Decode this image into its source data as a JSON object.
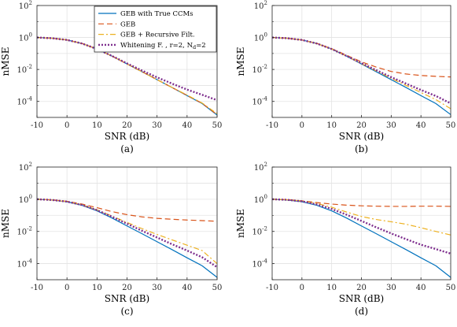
{
  "chart_data": [
    {
      "type": "line",
      "panel_label": "(a)",
      "xlabel": "SNR (dB)",
      "ylabel": "nMSE",
      "xlim": [
        -10,
        50
      ],
      "ylim": [
        1e-05,
        100
      ],
      "yscale": "log",
      "grid": true,
      "legend": "top-right",
      "x": [
        -10,
        -5,
        0,
        5,
        10,
        15,
        20,
        25,
        30,
        35,
        40,
        45,
        50
      ],
      "series": [
        {
          "name": "GEB with True CCMs",
          "color": "#0072bd",
          "style": "solid",
          "values": [
            1.0,
            0.9,
            0.7,
            0.42,
            0.19,
            0.068,
            0.022,
            0.0072,
            0.0023,
            0.00074,
            0.00023,
            7.4e-05,
            1.4e-05
          ]
        },
        {
          "name": "GEB",
          "color": "#d95319",
          "style": "dashed",
          "values": [
            1.0,
            0.9,
            0.7,
            0.42,
            0.19,
            0.068,
            0.022,
            0.0072,
            0.0023,
            0.00074,
            0.00024,
            7.6e-05,
            1.5e-05
          ]
        },
        {
          "name": "GEB + Recursive Filt.",
          "color": "#edb120",
          "style": "dashdot",
          "values": [
            1.0,
            0.9,
            0.7,
            0.42,
            0.19,
            0.068,
            0.022,
            0.0072,
            0.0023,
            0.00075,
            0.00025,
            8e-05,
            1.7e-05
          ]
        },
        {
          "name": "Whitening F. , r=2, N_d=2",
          "color": "#7e2f8e",
          "style": "dotted",
          "values": [
            1.0,
            0.9,
            0.7,
            0.42,
            0.19,
            0.07,
            0.024,
            0.0085,
            0.0032,
            0.0013,
            0.00055,
            0.00026,
            0.00012
          ]
        }
      ]
    },
    {
      "type": "line",
      "panel_label": "(b)",
      "xlabel": "SNR (dB)",
      "ylabel": "nMSE",
      "xlim": [
        -10,
        50
      ],
      "ylim": [
        1e-05,
        100
      ],
      "yscale": "log",
      "grid": true,
      "x": [
        -10,
        -5,
        0,
        5,
        10,
        15,
        20,
        25,
        30,
        35,
        40,
        45,
        50
      ],
      "series": [
        {
          "name": "GEB with True CCMs",
          "color": "#0072bd",
          "style": "solid",
          "values": [
            1.0,
            0.9,
            0.7,
            0.42,
            0.19,
            0.068,
            0.022,
            0.0072,
            0.0023,
            0.00074,
            0.00023,
            7.4e-05,
            1.5e-05
          ]
        },
        {
          "name": "GEB",
          "color": "#d95319",
          "style": "dashed",
          "values": [
            1.0,
            0.9,
            0.7,
            0.43,
            0.2,
            0.078,
            0.03,
            0.014,
            0.0075,
            0.0052,
            0.0042,
            0.0037,
            0.0034
          ]
        },
        {
          "name": "GEB + Recursive Filt.",
          "color": "#edb120",
          "style": "dashdot",
          "values": [
            1.0,
            0.9,
            0.7,
            0.42,
            0.19,
            0.069,
            0.023,
            0.008,
            0.0028,
            0.001,
            0.00036,
            0.00013,
            3.5e-05
          ]
        },
        {
          "name": "Whitening F. , r=2, N_d=2",
          "color": "#7e2f8e",
          "style": "dotted",
          "values": [
            1.0,
            0.9,
            0.7,
            0.42,
            0.19,
            0.07,
            0.025,
            0.009,
            0.0033,
            0.0013,
            0.00052,
            0.00022,
            7.5e-05
          ]
        }
      ]
    },
    {
      "type": "line",
      "panel_label": "(c)",
      "xlabel": "SNR (dB)",
      "ylabel": "nMSE",
      "xlim": [
        -10,
        50
      ],
      "ylim": [
        1e-05,
        100
      ],
      "yscale": "log",
      "grid": true,
      "x": [
        -10,
        -5,
        0,
        5,
        10,
        15,
        20,
        25,
        30,
        35,
        40,
        45,
        50
      ],
      "series": [
        {
          "name": "GEB with True CCMs",
          "color": "#0072bd",
          "style": "solid",
          "values": [
            1.0,
            0.9,
            0.7,
            0.42,
            0.19,
            0.068,
            0.022,
            0.0072,
            0.0023,
            0.00074,
            0.00023,
            7.4e-05,
            1.4e-05
          ]
        },
        {
          "name": "GEB",
          "color": "#d95319",
          "style": "dashed",
          "values": [
            1.0,
            0.92,
            0.75,
            0.5,
            0.3,
            0.17,
            0.11,
            0.08,
            0.065,
            0.057,
            0.051,
            0.047,
            0.043
          ]
        },
        {
          "name": "GEB + Recursive Filt.",
          "color": "#edb120",
          "style": "dashdot",
          "values": [
            1.0,
            0.9,
            0.72,
            0.45,
            0.22,
            0.09,
            0.036,
            0.015,
            0.0065,
            0.003,
            0.0014,
            0.00065,
            0.0001
          ]
        },
        {
          "name": "Whitening F. , r=2, N_d=2",
          "color": "#7e2f8e",
          "style": "dotted",
          "values": [
            1.0,
            0.9,
            0.71,
            0.44,
            0.21,
            0.082,
            0.03,
            0.011,
            0.0042,
            0.0016,
            0.00065,
            0.00025,
            6e-05
          ]
        }
      ]
    },
    {
      "type": "line",
      "panel_label": "(d)",
      "xlabel": "SNR (dB)",
      "ylabel": "nMSE",
      "xlim": [
        -10,
        50
      ],
      "ylim": [
        1e-05,
        100
      ],
      "yscale": "log",
      "grid": true,
      "x": [
        -10,
        -5,
        0,
        5,
        10,
        15,
        20,
        25,
        30,
        35,
        40,
        45,
        50
      ],
      "series": [
        {
          "name": "GEB with True CCMs",
          "color": "#0072bd",
          "style": "solid",
          "values": [
            1.0,
            0.9,
            0.7,
            0.42,
            0.19,
            0.068,
            0.022,
            0.0072,
            0.0023,
            0.00074,
            0.00023,
            7.4e-05,
            1.4e-05
          ]
        },
        {
          "name": "GEB",
          "color": "#d95319",
          "style": "dashed",
          "values": [
            1.0,
            0.95,
            0.8,
            0.62,
            0.5,
            0.43,
            0.39,
            0.37,
            0.36,
            0.36,
            0.37,
            0.37,
            0.36
          ]
        },
        {
          "name": "GEB + Recursive Filt.",
          "color": "#edb120",
          "style": "dashdot",
          "values": [
            1.0,
            0.93,
            0.78,
            0.55,
            0.32,
            0.16,
            0.085,
            0.055,
            0.04,
            0.028,
            0.017,
            0.01,
            0.006
          ]
        },
        {
          "name": "Whitening F. , r=2, N_d=2",
          "color": "#7e2f8e",
          "style": "dotted",
          "values": [
            1.0,
            0.92,
            0.74,
            0.48,
            0.25,
            0.11,
            0.045,
            0.018,
            0.0075,
            0.0033,
            0.0015,
            0.0008,
            0.00042
          ]
        }
      ]
    }
  ],
  "legend": {
    "entries": [
      {
        "text": "GEB with True CCMs"
      },
      {
        "text": "GEB"
      },
      {
        "text": "GEB + Recursive Filt."
      },
      {
        "prefix": "Whitening F. , r=2, N",
        "sub": "d",
        "suffix": "=2"
      }
    ]
  },
  "yticks": [
    {
      "base": "10",
      "exp": "2"
    },
    {
      "base": "10",
      "exp": "0"
    },
    {
      "base": "10",
      "exp": "-2"
    },
    {
      "base": "10",
      "exp": "-4"
    }
  ],
  "xticks": [
    "-10",
    "0",
    "10",
    "20",
    "30",
    "40",
    "50"
  ]
}
